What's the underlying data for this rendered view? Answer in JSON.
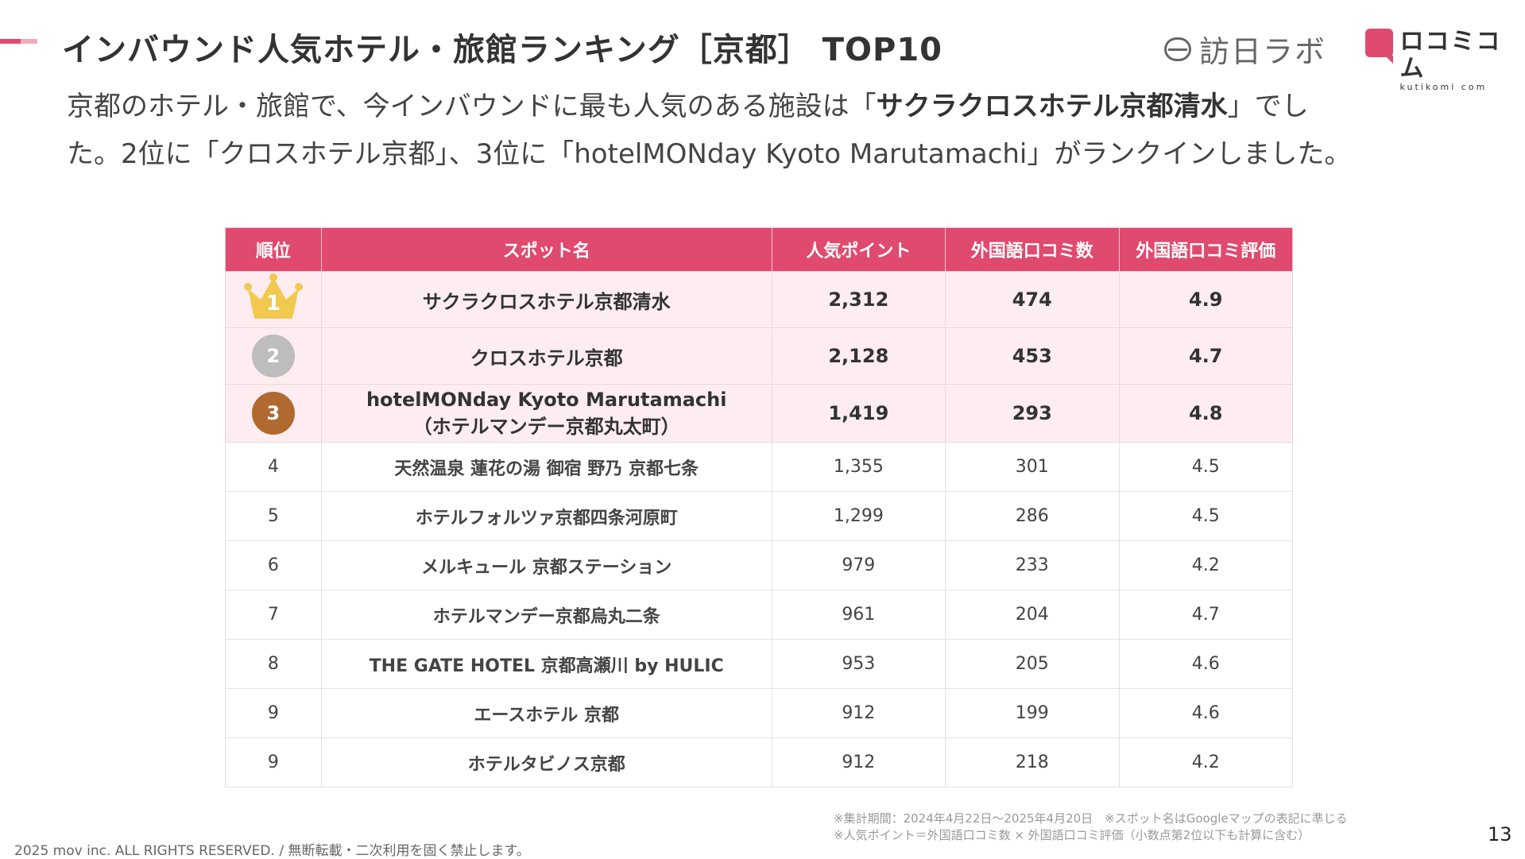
{
  "header": {
    "title": "インバウンド人気ホテル・旅館ランキング［京都］ TOP10",
    "logo_houniti": "訪日ラボ",
    "logo_kuchikomi": "ロコミコム",
    "logo_kuchikomi_sub": "kutikomi com"
  },
  "intro": {
    "line1_pre": "京都のホテル・旅館で、今インバウンドに最も人気のある施設は「",
    "line1_bold": "サクラクロスホテル京都清水",
    "line1_post": "」でし",
    "line2": "た。2位に「クロスホテル京都」、3位に「hotelMONday Kyoto Marutamachi」がランクインしました。"
  },
  "table": {
    "headers": [
      "順位",
      "スポット名",
      "人気ポイント",
      "外国語口コミ数",
      "外国語口コミ評価"
    ],
    "rows": [
      {
        "rank": "1",
        "name": "サクラクロスホテル京都清水",
        "name2": "",
        "points": "2,312",
        "reviews": "474",
        "rating": "4.9"
      },
      {
        "rank": "2",
        "name": "クロスホテル京都",
        "name2": "",
        "points": "2,128",
        "reviews": "453",
        "rating": "4.7"
      },
      {
        "rank": "3",
        "name": "hotelMONday Kyoto Marutamachi",
        "name2": "（ホテルマンデー京都丸太町）",
        "points": "1,419",
        "reviews": "293",
        "rating": "4.8"
      },
      {
        "rank": "4",
        "name": "天然温泉 蓮花の湯 御宿 野乃 京都七条",
        "name2": "",
        "points": "1,355",
        "reviews": "301",
        "rating": "4.5"
      },
      {
        "rank": "5",
        "name": "ホテルフォルツァ京都四条河原町",
        "name2": "",
        "points": "1,299",
        "reviews": "286",
        "rating": "4.5"
      },
      {
        "rank": "6",
        "name": "メルキュール 京都ステーション",
        "name2": "",
        "points": "979",
        "reviews": "233",
        "rating": "4.2"
      },
      {
        "rank": "7",
        "name": "ホテルマンデー京都烏丸二条",
        "name2": "",
        "points": "961",
        "reviews": "204",
        "rating": "4.7"
      },
      {
        "rank": "8",
        "name": "THE GATE HOTEL 京都高瀬川 by HULIC",
        "name2": "",
        "points": "953",
        "reviews": "205",
        "rating": "4.6"
      },
      {
        "rank": "9",
        "name": "エースホテル 京都",
        "name2": "",
        "points": "912",
        "reviews": "199",
        "rating": "4.6"
      },
      {
        "rank": "9",
        "name": "ホテルタビノス京都",
        "name2": "",
        "points": "912",
        "reviews": "218",
        "rating": "4.2"
      }
    ]
  },
  "medals": {
    "gold": "#f1c94f",
    "silver": "#bdbdbd",
    "bronze": "#b06a2f"
  },
  "notes": {
    "line1": "※集計期間：2024年4月22日〜2025年4月20日　※スポット名はGoogleマップの表記に準じる",
    "line2": "※人気ポイント＝外国語口コミ数 × 外国語口コミ評価（小数点第2位以下も計算に含む）"
  },
  "footer": {
    "copyright": "2025 mov inc. ALL RIGHTS RESERVED. / 無断転載・二次利用を固く禁止します。",
    "page_number": "13"
  }
}
